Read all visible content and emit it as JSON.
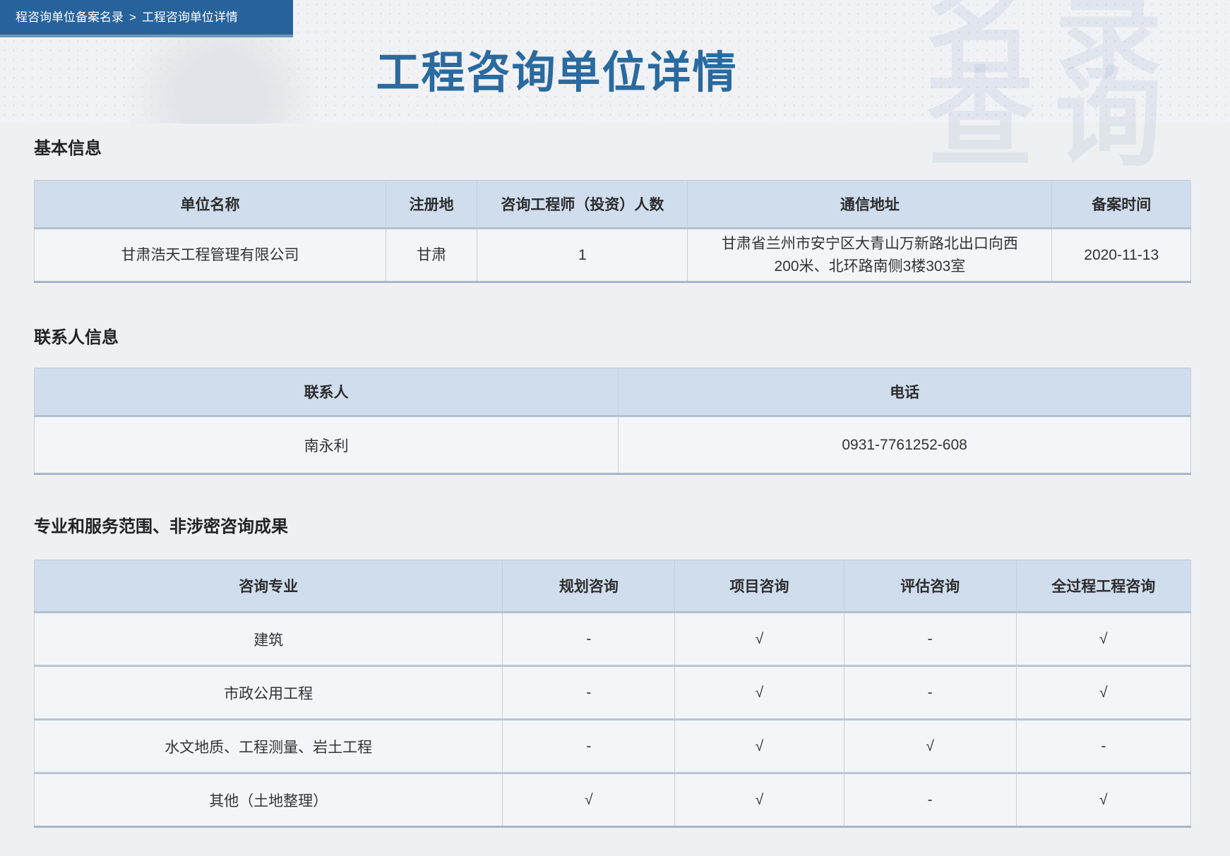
{
  "breadcrumb": {
    "items": [
      "程咨询单位备案名录",
      "工程咨询单位详情"
    ],
    "separator": ">"
  },
  "banner": {
    "title": "工程咨询单位详情",
    "watermark_line1": "名录",
    "watermark_line2": "查询"
  },
  "colors": {
    "accent_blue": "#27639b",
    "title_blue": "#2a6a9f",
    "table_header_bg": "#cfdded",
    "row_bg": "#f3f5f8",
    "row_divider": "#b9c5d6"
  },
  "sections": [
    {
      "heading": "基本信息",
      "table": {
        "columns": [
          "单位名称",
          "注册地",
          "咨询工程师（投资）人数",
          "通信地址",
          "备案时间"
        ],
        "widths": [
          30.4,
          7.9,
          18.2,
          31.5,
          12.0
        ],
        "rows": [
          [
            "甘肃浩天工程管理有限公司",
            "甘肃",
            "1",
            "甘肃省兰州市安宁区大青山万新路北出口向西200米、北环路南侧3楼303室",
            "2020-11-13"
          ]
        ]
      }
    },
    {
      "heading": "联系人信息",
      "table": {
        "columns": [
          "联系人",
          "电话"
        ],
        "widths": [
          50.5,
          49.5
        ],
        "rows": [
          [
            "南永利",
            "0931-7761252-608"
          ]
        ]
      }
    },
    {
      "heading": "专业和服务范围、非涉密咨询成果",
      "table": {
        "columns": [
          "咨询专业",
          "规划咨询",
          "项目咨询",
          "评估咨询",
          "全过程工程咨询"
        ],
        "widths": [
          40.5,
          14.9,
          14.6,
          14.9,
          15.1
        ],
        "rows": [
          [
            "建筑",
            "-",
            "√",
            "-",
            "√"
          ],
          [
            "市政公用工程",
            "-",
            "√",
            "-",
            "√"
          ],
          [
            "水文地质、工程测量、岩土工程",
            "-",
            "√",
            "√",
            "-"
          ],
          [
            "其他（土地整理）",
            "√",
            "√",
            "-",
            "√"
          ]
        ]
      }
    }
  ]
}
